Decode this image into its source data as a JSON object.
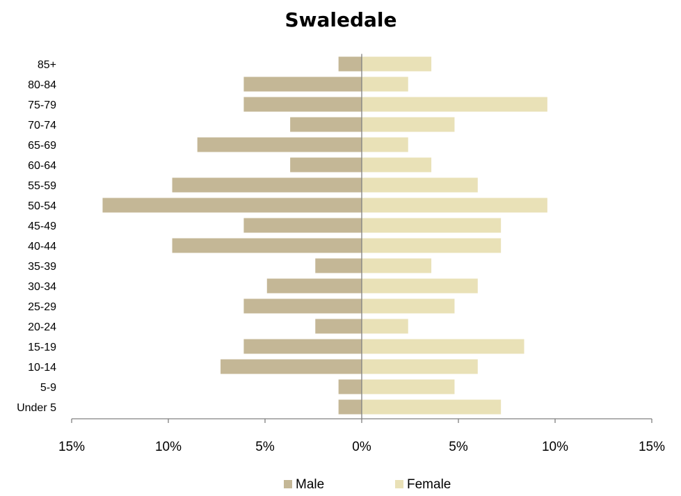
{
  "chart_data": {
    "type": "bar",
    "orientation": "horizontal",
    "title": "Swaledale",
    "categories": [
      "Under 5",
      "5-9",
      "10-14",
      "15-19",
      "20-24",
      "25-29",
      "30-34",
      "35-39",
      "40-44",
      "45-49",
      "50-54",
      "55-59",
      "60-64",
      "65-69",
      "70-74",
      "75-79",
      "80-84",
      "85+"
    ],
    "series": [
      {
        "name": "Male",
        "color": "#c4b796",
        "values": [
          -1.2,
          -1.2,
          -7.3,
          -6.1,
          -2.4,
          -6.1,
          -4.9,
          -2.4,
          -9.8,
          -6.1,
          -13.4,
          -9.8,
          -3.7,
          -8.5,
          -3.7,
          -6.1,
          -6.1,
          -1.2
        ]
      },
      {
        "name": "Female",
        "color": "#e9e1b7",
        "values": [
          7.2,
          4.8,
          6.0,
          8.4,
          2.4,
          4.8,
          6.0,
          3.6,
          7.2,
          7.2,
          9.6,
          6.0,
          3.6,
          2.4,
          4.8,
          9.6,
          2.4,
          3.6
        ]
      }
    ],
    "xlim": [
      -15,
      15
    ],
    "x_ticks": [
      -15,
      -10,
      -5,
      0,
      5,
      10,
      15
    ],
    "x_tick_labels": [
      "15%",
      "10%",
      "5%",
      "0%",
      "5%",
      "10%",
      "15%"
    ],
    "grid": false,
    "legend": "bottom"
  }
}
